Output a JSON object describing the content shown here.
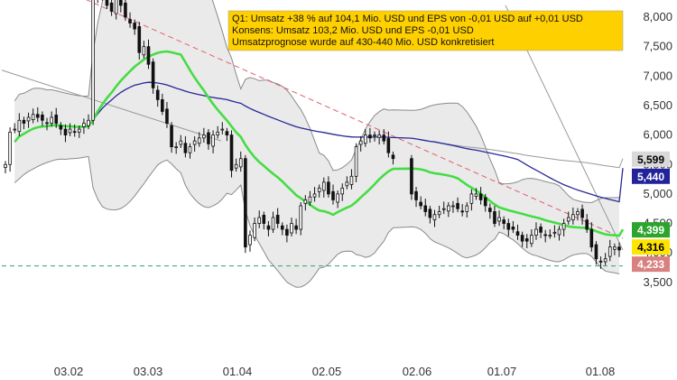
{
  "chart_data": {
    "type": "candlestick",
    "x_ticks": [
      "03.02",
      "03.03",
      "01.04",
      "02.05",
      "02.06",
      "01.07",
      "01.08"
    ],
    "y_ticks": [
      "8,000",
      "7,500",
      "7,000",
      "6,500",
      "6,000",
      "5,500",
      "5,000",
      "4,500",
      "4,000",
      "3,500"
    ],
    "y_tick_values": [
      8.0,
      7.5,
      7.0,
      6.5,
      6.0,
      5.5,
      5.0,
      4.5,
      4.0,
      3.5
    ],
    "ylim": [
      3.4,
      8.2
    ],
    "grid": false,
    "annotation": {
      "lines": [
        "Q1: Umsatz +38 % auf 104,1 Mio. USD und EPS von -0,01 USD auf +0,01 USD",
        "Konsens: Umsatz 103,2 Mio. USD und EPS -0,01 USD",
        "Umsatzprognose wurde auf 430-440 Mio. USD konkretisiert"
      ],
      "background": "#FFD000",
      "position": "top-right"
    },
    "value_tags": [
      {
        "label": "5,599",
        "value": 5.599,
        "bg": "#D9D9D9",
        "fg": "#000000"
      },
      {
        "label": "5,440",
        "value": 5.44,
        "bg": "#22229A",
        "fg": "#ffffff"
      },
      {
        "label": "4,399",
        "value": 4.399,
        "bg": "#2DA52D",
        "fg": "#ffffff"
      },
      {
        "label": "4,316",
        "value": 4.316,
        "bg": "#FFE400",
        "fg": "#000000"
      },
      {
        "label": "4,233",
        "value": 4.233,
        "bg": "#D98080",
        "fg": "#ffffff"
      }
    ],
    "support_level": 3.78,
    "trendline": {
      "start": 8.3,
      "end": 4.25,
      "color": "#E06070"
    },
    "colors": {
      "up": "#ffffff",
      "down": "#111111",
      "wick": "#111111",
      "sma_short": "#44DD44",
      "sma_long": "#2A2A99",
      "sma_gray": "#999999",
      "bollinger_band": "#D9D9D9",
      "support": "#2AAA66"
    },
    "closes": [
      5.5,
      6.05,
      6.1,
      6.25,
      6.2,
      6.3,
      6.35,
      6.3,
      6.25,
      6.2,
      6.3,
      6.2,
      6.1,
      6.0,
      6.1,
      6.05,
      6.1,
      6.2,
      6.25,
      8.3,
      8.5,
      8.4,
      8.2,
      8.1,
      8.3,
      8.2,
      8.0,
      7.9,
      7.8,
      7.4,
      7.5,
      7.2,
      6.8,
      6.6,
      6.4,
      6.2,
      5.8,
      5.8,
      5.9,
      5.7,
      5.8,
      5.9,
      5.95,
      6.0,
      5.85,
      6.0,
      6.05,
      6.1,
      6.0,
      5.4,
      5.5,
      5.6,
      4.1,
      4.3,
      4.5,
      4.6,
      4.5,
      4.4,
      4.6,
      4.5,
      4.4,
      4.3,
      4.5,
      4.4,
      4.8,
      4.9,
      4.95,
      5.0,
      5.1,
      5.2,
      5.0,
      4.9,
      5.0,
      5.1,
      5.2,
      5.3,
      5.8,
      5.9,
      6.0,
      5.95,
      6.0,
      6.0,
      5.9,
      5.7,
      5.6,
      null,
      null,
      null,
      5.0,
      4.9,
      4.8,
      4.7,
      4.6,
      4.65,
      4.7,
      4.75,
      4.8,
      4.8,
      4.75,
      4.7,
      4.8,
      5.0,
      5.0,
      4.9,
      4.8,
      4.7,
      4.5,
      4.6,
      4.5,
      4.4,
      4.4,
      4.3,
      4.2,
      4.2,
      4.3,
      4.4,
      4.35,
      4.3,
      4.3,
      4.35,
      4.4,
      4.5,
      4.6,
      4.65,
      4.7,
      4.6,
      4.4,
      4.1,
      3.9,
      3.85,
      3.9,
      4.1,
      4.1,
      4.05
    ]
  }
}
